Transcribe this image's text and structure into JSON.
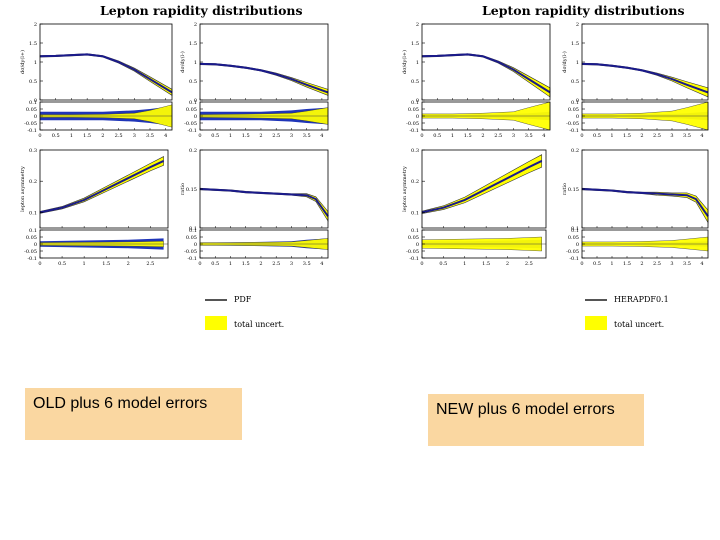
{
  "colors": {
    "band": "#ffff00",
    "central": "#1a1a8c",
    "ratio_band": "#1f35b8",
    "axis": "#000000",
    "caption_bg": "#fad7a1"
  },
  "figures": [
    {
      "id": "old",
      "title": "Lepton rapidity distributions",
      "legend": {
        "line": "PDF",
        "band": "total uncert."
      },
      "caption": "OLD plus 6 model errors"
    },
    {
      "id": "new",
      "title": "Lepton rapidity distributions",
      "legend": {
        "line": "HERAPDF0.1",
        "band": "total uncert."
      },
      "caption": "NEW plus 6 model errors"
    }
  ],
  "chart_data": [
    {
      "type": "area",
      "figure": "old",
      "title": "Lepton rapidity distributions",
      "panels": [
        {
          "id": "top-left",
          "ylabel": "dσ/dy(l+)",
          "xlim": [
            0,
            4.2
          ],
          "ylim": [
            0,
            2
          ],
          "yticks": [
            0,
            0.5,
            1,
            1.5,
            2
          ],
          "x": [
            0,
            0.5,
            1,
            1.5,
            2,
            2.5,
            3,
            3.5,
            4.2
          ],
          "values": [
            1.15,
            1.16,
            1.18,
            1.2,
            1.15,
            1.0,
            0.8,
            0.55,
            0.2
          ],
          "band_half_width": [
            0.02,
            0.02,
            0.02,
            0.02,
            0.02,
            0.03,
            0.04,
            0.06,
            0.08
          ]
        },
        {
          "id": "top-right",
          "ylabel": "dσ/dy(l-)",
          "xlim": [
            0,
            4.2
          ],
          "ylim": [
            0,
            2
          ],
          "yticks": [
            0,
            0.5,
            1,
            1.5,
            2
          ],
          "x": [
            0,
            0.5,
            1,
            1.5,
            2,
            2.5,
            3,
            3.5,
            4.2
          ],
          "values": [
            0.95,
            0.94,
            0.9,
            0.85,
            0.78,
            0.68,
            0.55,
            0.4,
            0.2
          ],
          "band_half_width": [
            0.02,
            0.02,
            0.02,
            0.02,
            0.02,
            0.03,
            0.04,
            0.06,
            0.08
          ]
        },
        {
          "id": "mid-left",
          "ylabel": "lepton asymmetry",
          "xlim": [
            0,
            2.9
          ],
          "ylim": [
            0.05,
            0.3
          ],
          "yticks": [
            0.1,
            0.2,
            0.3
          ],
          "x": [
            0,
            0.5,
            1,
            1.5,
            2,
            2.5,
            2.8
          ],
          "values": [
            0.1,
            0.115,
            0.14,
            0.175,
            0.21,
            0.245,
            0.265
          ],
          "band_half_width": [
            0.003,
            0.004,
            0.006,
            0.008,
            0.01,
            0.012,
            0.014
          ]
        },
        {
          "id": "mid-right",
          "ylabel": "ratio",
          "xlim": [
            0,
            4.2
          ],
          "ylim": [
            0.1,
            0.2
          ],
          "yticks": [
            0.1,
            0.15,
            0.2
          ],
          "x": [
            0,
            0.5,
            1,
            1.5,
            2,
            2.5,
            3,
            3.5,
            3.8,
            4.2
          ],
          "values": [
            0.15,
            0.149,
            0.148,
            0.146,
            0.145,
            0.144,
            0.143,
            0.142,
            0.137,
            0.115
          ],
          "band_half_width": [
            0.001,
            0.001,
            0.001,
            0.001,
            0.001,
            0.001,
            0.001,
            0.002,
            0.003,
            0.006
          ]
        }
      ],
      "ratio_panels": [
        {
          "id": "ratio-top-left",
          "xlim": [
            0,
            4.2
          ],
          "ylim": [
            -0.1,
            0.1
          ],
          "yticks": [
            -0.1,
            -0.05,
            0,
            0.05,
            0.1
          ],
          "x": [
            0,
            1,
            2,
            3,
            3.5,
            4.2
          ],
          "band": [
            0.01,
            0.01,
            0.012,
            0.02,
            0.04,
            0.08
          ],
          "blue": [
            0.03,
            0.03,
            0.03,
            0.04,
            0.05,
            0.07
          ]
        },
        {
          "id": "ratio-top-right",
          "xlim": [
            0,
            4.2
          ],
          "ylim": [
            -0.1,
            0.1
          ],
          "yticks": [
            -0.1,
            -0.05,
            0,
            0.05,
            0.1
          ],
          "x": [
            0,
            1,
            2,
            3,
            3.5,
            4.2
          ],
          "band": [
            0.01,
            0.012,
            0.015,
            0.02,
            0.035,
            0.06
          ],
          "blue": [
            0.03,
            0.03,
            0.03,
            0.04,
            0.05,
            0.06
          ]
        },
        {
          "id": "ratio-mid-left",
          "xlim": [
            0,
            2.9
          ],
          "ylim": [
            -0.1,
            0.1
          ],
          "yticks": [
            -0.1,
            -0.05,
            0,
            0.05,
            0.1
          ],
          "x": [
            0,
            1,
            2,
            2.8
          ],
          "band": [
            0.01,
            0.012,
            0.015,
            0.02
          ],
          "blue": [
            0.02,
            0.025,
            0.03,
            0.04
          ]
        },
        {
          "id": "ratio-mid-right",
          "xlim": [
            0,
            4.2
          ],
          "ylim": [
            -0.1,
            0.1
          ],
          "yticks": [
            -0.1,
            -0.05,
            0,
            0.05,
            0.1
          ],
          "x": [
            0,
            1,
            2,
            3,
            3.5,
            4.2
          ],
          "band": [
            0.01,
            0.01,
            0.012,
            0.015,
            0.025,
            0.04
          ],
          "blue": [
            0.01,
            0.012,
            0.015,
            0.02,
            0.03,
            0.04
          ]
        }
      ]
    },
    {
      "type": "area",
      "figure": "new",
      "title": "Lepton rapidity distributions",
      "panels": [
        {
          "id": "top-left",
          "ylabel": "dσ/dy(l+)",
          "xlim": [
            0,
            4.2
          ],
          "ylim": [
            0,
            2
          ],
          "yticks": [
            0,
            0.5,
            1,
            1.5,
            2
          ],
          "x": [
            0,
            0.5,
            1,
            1.5,
            2,
            2.5,
            3,
            3.5,
            4.2
          ],
          "values": [
            1.15,
            1.16,
            1.18,
            1.2,
            1.15,
            1.0,
            0.8,
            0.55,
            0.2
          ],
          "band_half_width": [
            0.02,
            0.02,
            0.02,
            0.02,
            0.02,
            0.03,
            0.05,
            0.08,
            0.12
          ]
        },
        {
          "id": "top-right",
          "ylabel": "dσ/dy(l-)",
          "xlim": [
            0,
            4.2
          ],
          "ylim": [
            0,
            2
          ],
          "yticks": [
            0,
            0.5,
            1,
            1.5,
            2
          ],
          "x": [
            0,
            0.5,
            1,
            1.5,
            2,
            2.5,
            3,
            3.5,
            4.2
          ],
          "values": [
            0.95,
            0.94,
            0.9,
            0.85,
            0.78,
            0.68,
            0.55,
            0.4,
            0.2
          ],
          "band_half_width": [
            0.02,
            0.02,
            0.02,
            0.02,
            0.02,
            0.03,
            0.05,
            0.08,
            0.12
          ]
        },
        {
          "id": "mid-left",
          "ylabel": "lepton asymmetry",
          "xlim": [
            0,
            2.9
          ],
          "ylim": [
            0.05,
            0.3
          ],
          "yticks": [
            0.1,
            0.2,
            0.3
          ],
          "x": [
            0,
            0.5,
            1,
            1.5,
            2,
            2.5,
            2.8
          ],
          "values": [
            0.1,
            0.115,
            0.14,
            0.175,
            0.21,
            0.245,
            0.265
          ],
          "band_half_width": [
            0.004,
            0.006,
            0.009,
            0.012,
            0.015,
            0.018,
            0.02
          ]
        },
        {
          "id": "mid-right",
          "ylabel": "ratio",
          "xlim": [
            0,
            4.2
          ],
          "ylim": [
            0.1,
            0.2
          ],
          "yticks": [
            0.1,
            0.15,
            0.2
          ],
          "x": [
            0,
            0.5,
            1,
            1.5,
            2,
            2.5,
            3,
            3.5,
            3.8,
            4.2
          ],
          "values": [
            0.15,
            0.149,
            0.148,
            0.146,
            0.145,
            0.144,
            0.143,
            0.142,
            0.137,
            0.115
          ],
          "band_half_width": [
            0.001,
            0.001,
            0.001,
            0.001,
            0.001,
            0.002,
            0.002,
            0.003,
            0.004,
            0.008
          ]
        }
      ],
      "ratio_panels": [
        {
          "id": "ratio-top-left",
          "xlim": [
            0,
            4.2
          ],
          "ylim": [
            -0.1,
            0.1
          ],
          "yticks": [
            -0.1,
            -0.05,
            0,
            0.05,
            0.1
          ],
          "x": [
            0,
            1,
            2,
            3,
            3.5,
            4.2
          ],
          "band": [
            0.015,
            0.015,
            0.02,
            0.03,
            0.06,
            0.1
          ],
          "blue": [
            0.01,
            0.01,
            0.012,
            0.015,
            0.02,
            0.03
          ]
        },
        {
          "id": "ratio-top-right",
          "xlim": [
            0,
            4.2
          ],
          "ylim": [
            -0.1,
            0.1
          ],
          "yticks": [
            -0.1,
            -0.05,
            0,
            0.05,
            0.1
          ],
          "x": [
            0,
            1,
            2,
            3,
            3.5,
            4.2
          ],
          "band": [
            0.015,
            0.015,
            0.02,
            0.035,
            0.06,
            0.1
          ],
          "blue": [
            0.01,
            0.01,
            0.012,
            0.015,
            0.02,
            0.03
          ]
        },
        {
          "id": "ratio-mid-left",
          "xlim": [
            0,
            2.9
          ],
          "ylim": [
            -0.1,
            0.1
          ],
          "yticks": [
            -0.1,
            -0.05,
            0,
            0.05,
            0.1
          ],
          "x": [
            0,
            1,
            2,
            2.8
          ],
          "band": [
            0.03,
            0.035,
            0.04,
            0.05
          ],
          "blue": [
            0.02,
            0.02,
            0.025,
            0.03
          ]
        },
        {
          "id": "ratio-mid-right",
          "xlim": [
            0,
            4.2
          ],
          "ylim": [
            -0.1,
            0.1
          ],
          "yticks": [
            -0.1,
            -0.05,
            0,
            0.05,
            0.1
          ],
          "x": [
            0,
            1,
            2,
            3,
            3.5,
            4.2
          ],
          "band": [
            0.015,
            0.015,
            0.018,
            0.025,
            0.035,
            0.05
          ],
          "blue": [
            0.008,
            0.008,
            0.01,
            0.012,
            0.015,
            0.02
          ]
        }
      ]
    }
  ]
}
